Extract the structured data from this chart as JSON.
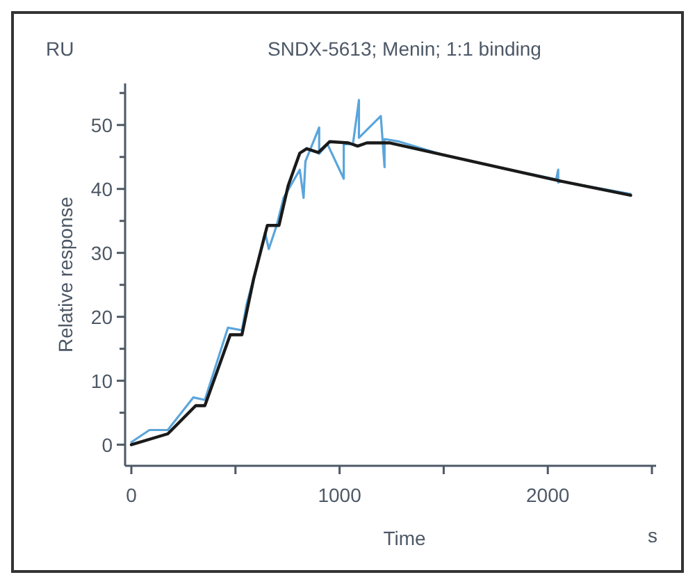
{
  "chart_data": {
    "type": "line",
    "title": "SNDX-5613; Menin; 1:1 binding",
    "xlabel": "Time",
    "ylabel": "Relative response",
    "annotations": [
      "RU",
      "s"
    ],
    "xlim": [
      -30,
      2520
    ],
    "xticks": [
      0,
      {
        "value": 500,
        "label": null
      },
      1000,
      {
        "value": 1500,
        "label": null
      },
      2000,
      {
        "value": 2500,
        "label": null
      }
    ],
    "ylim": [
      -3.3,
      56.5
    ],
    "yticks": [
      0,
      {
        "value": 5,
        "label": null
      },
      10,
      {
        "value": 15,
        "label": null
      },
      20,
      {
        "value": 25,
        "label": null
      },
      30,
      {
        "value": 35,
        "label": null
      },
      40,
      {
        "value": 45,
        "label": null
      },
      50,
      {
        "value": 55,
        "label": null
      }
    ],
    "marker": "none",
    "line_style": "solid",
    "series": [
      {
        "color": "#5aa5dc",
        "x": [
          0,
          87,
          175,
          298,
          353,
          464,
          531,
          553,
          598,
          642,
          660,
          698,
          731,
          809,
          827,
          836,
          902,
          902,
          942,
          1020,
          1020,
          1064,
          1093,
          1093,
          1198,
          1216,
          1216,
          1287,
          1500,
          1800,
          2040,
          2050,
          2050,
          2064,
          2398
        ],
        "values": [
          0.4,
          2.3,
          2.3,
          7.4,
          7,
          18.3,
          17.9,
          21.9,
          27.3,
          33.2,
          30.6,
          34.3,
          38.6,
          43,
          38.6,
          44.3,
          49.6,
          45.5,
          47,
          41.6,
          47,
          47,
          53.9,
          48,
          51.4,
          43.4,
          47.8,
          47.4,
          45.3,
          43.1,
          41.5,
          43,
          41,
          41.2,
          39.2
        ]
      },
      {
        "color": "#1a1a1a",
        "x": [
          0,
          175,
          309,
          353,
          475,
          531,
          587,
          653,
          709,
          753,
          809,
          842,
          898,
          953,
          1042,
          1087,
          1131,
          1242,
          2064,
          2398
        ],
        "values": [
          0,
          1.7,
          6.1,
          6.1,
          17.2,
          17.2,
          25.9,
          34.3,
          34.3,
          40.5,
          45.6,
          46.3,
          45.7,
          47.4,
          47.2,
          46.7,
          47.2,
          47.2,
          41.2,
          39.0
        ]
      }
    ]
  }
}
